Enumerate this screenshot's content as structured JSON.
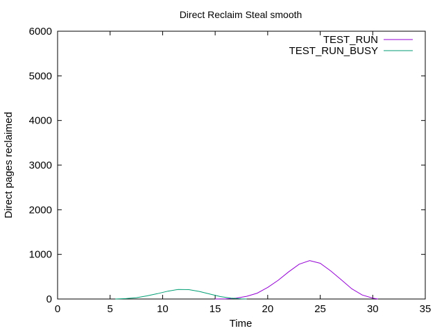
{
  "chart_data": {
    "type": "line",
    "title": "Direct Reclaim Steal smooth",
    "xlabel": "Time",
    "ylabel": "Direct pages reclaimed",
    "xlim": [
      0,
      35
    ],
    "ylim": [
      0,
      6000
    ],
    "xticks": [
      0,
      5,
      10,
      15,
      20,
      25,
      30,
      35
    ],
    "yticks": [
      0,
      1000,
      2000,
      3000,
      4000,
      5000,
      6000
    ],
    "grid": false,
    "legend_position": "top-right",
    "series": [
      {
        "name": "TEST_RUN",
        "color": "#9400d3",
        "x": [
          15.0,
          16.0,
          17.0,
          18.0,
          19.0,
          20.0,
          21.0,
          22.0,
          23.0,
          24.0,
          25.0,
          26.0,
          27.0,
          28.0,
          29.0,
          30.0,
          30.5
        ],
        "y": [
          0,
          5,
          20,
          60,
          130,
          260,
          420,
          610,
          780,
          860,
          800,
          630,
          430,
          230,
          90,
          20,
          0
        ]
      },
      {
        "name": "TEST_RUN_BUSY",
        "color": "#009e73",
        "x": [
          5.5,
          6.5,
          7.5,
          8.5,
          9.5,
          10.5,
          11.5,
          12.5,
          13.5,
          14.5,
          15.5,
          16.5,
          17.5,
          18.0
        ],
        "y": [
          0,
          10,
          30,
          70,
          120,
          175,
          215,
          210,
          170,
          110,
          55,
          20,
          5,
          0
        ]
      }
    ]
  }
}
